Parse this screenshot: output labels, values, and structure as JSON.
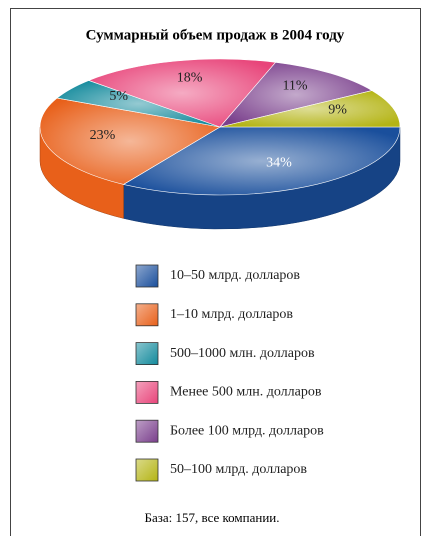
{
  "chart_data": {
    "type": "pie3d",
    "title": "Суммарный объем продаж в 2004 году",
    "categories": [
      "10–50 млрд. долларов",
      "1–10 млрд. долларов",
      "500–1000 млн. долларов",
      "Менее 500 млн. долларов",
      "Более 100 млрд. долларов",
      "50–100 млрд. долларов"
    ],
    "values": [
      34,
      23,
      5,
      18,
      11,
      9
    ],
    "value_labels": [
      "34%",
      "23%",
      "5%",
      "18%",
      "11%",
      "9%"
    ],
    "colors": [
      "#1a4f9c",
      "#e8601a",
      "#138a9c",
      "#e8457a",
      "#7a3f8c",
      "#b4b414"
    ],
    "note": "База: 157, все компании."
  }
}
